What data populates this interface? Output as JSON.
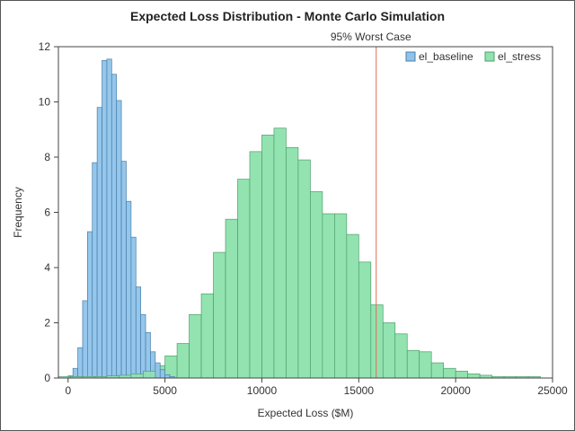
{
  "chart_data": {
    "type": "histogram",
    "title": "Expected Loss Distribution - Monte Carlo Simulation",
    "xlabel": "Expected Loss ($M)",
    "ylabel": "Frequency",
    "xlim": [
      -500,
      25000
    ],
    "ylim": [
      0,
      12
    ],
    "x_ticks": [
      0,
      5000,
      10000,
      15000,
      20000,
      25000
    ],
    "y_ticks": [
      0,
      2,
      4,
      6,
      8,
      10,
      12
    ],
    "grid": false,
    "legend_position": "top-right",
    "reference_line": {
      "x": 15900,
      "label": "95% Worst Case",
      "color": "#e06b5a"
    },
    "series": [
      {
        "name": "el_baseline",
        "color": "#8fc3ea",
        "edge": "#4a7fa8",
        "bin_width": 250,
        "bins": [
          {
            "x0": 0,
            "freq": 0.08
          },
          {
            "x0": 250,
            "freq": 0.35
          },
          {
            "x0": 500,
            "freq": 1.1
          },
          {
            "x0": 750,
            "freq": 2.8
          },
          {
            "x0": 1000,
            "freq": 5.3
          },
          {
            "x0": 1250,
            "freq": 7.8
          },
          {
            "x0": 1500,
            "freq": 9.8
          },
          {
            "x0": 1750,
            "freq": 11.5
          },
          {
            "x0": 2000,
            "freq": 11.55
          },
          {
            "x0": 2250,
            "freq": 11.0
          },
          {
            "x0": 2500,
            "freq": 10.05
          },
          {
            "x0": 2750,
            "freq": 7.85
          },
          {
            "x0": 3000,
            "freq": 6.4
          },
          {
            "x0": 3250,
            "freq": 5.1
          },
          {
            "x0": 3500,
            "freq": 3.3
          },
          {
            "x0": 3750,
            "freq": 2.3
          },
          {
            "x0": 4000,
            "freq": 1.65
          },
          {
            "x0": 4250,
            "freq": 0.95
          },
          {
            "x0": 4500,
            "freq": 0.55
          },
          {
            "x0": 4750,
            "freq": 0.3
          },
          {
            "x0": 5000,
            "freq": 0.12
          },
          {
            "x0": 5250,
            "freq": 0.05
          }
        ]
      },
      {
        "name": "el_stress",
        "color": "#93e3b0",
        "edge": "#4e9e6c",
        "bin_width": 625,
        "bins": [
          {
            "x0": 4375,
            "freq": 0.45
          },
          {
            "x0": 5000,
            "freq": 0.8
          },
          {
            "x0": 5625,
            "freq": 1.25
          },
          {
            "x0": 6250,
            "freq": 2.3
          },
          {
            "x0": 6875,
            "freq": 3.05
          },
          {
            "x0": 7500,
            "freq": 4.55
          },
          {
            "x0": 8125,
            "freq": 5.75
          },
          {
            "x0": 8750,
            "freq": 7.2
          },
          {
            "x0": 9375,
            "freq": 8.2
          },
          {
            "x0": 10000,
            "freq": 8.8
          },
          {
            "x0": 10625,
            "freq": 9.05
          },
          {
            "x0": 11250,
            "freq": 8.35
          },
          {
            "x0": 11875,
            "freq": 7.9
          },
          {
            "x0": 12500,
            "freq": 6.75
          },
          {
            "x0": 13125,
            "freq": 5.95
          },
          {
            "x0": 13750,
            "freq": 5.95
          },
          {
            "x0": 14375,
            "freq": 5.2
          },
          {
            "x0": 15000,
            "freq": 4.2
          },
          {
            "x0": 15625,
            "freq": 2.65
          },
          {
            "x0": 16250,
            "freq": 2.0
          },
          {
            "x0": 16875,
            "freq": 1.6
          },
          {
            "x0": 17500,
            "freq": 1.0
          },
          {
            "x0": 18125,
            "freq": 0.95
          },
          {
            "x0": 18750,
            "freq": 0.55
          },
          {
            "x0": 19375,
            "freq": 0.35
          },
          {
            "x0": 20000,
            "freq": 0.25
          },
          {
            "x0": 20625,
            "freq": 0.15
          },
          {
            "x0": 21250,
            "freq": 0.1
          },
          {
            "x0": 21875,
            "freq": 0.05
          },
          {
            "x0": 22500,
            "freq": 0.05
          },
          {
            "x0": 23125,
            "freq": 0.05
          },
          {
            "x0": 23750,
            "freq": 0.05
          }
        ],
        "low_tail_bins": [
          {
            "x0": -500,
            "freq": 0.05
          },
          {
            "x0": 125,
            "freq": 0.05
          },
          {
            "x0": 750,
            "freq": 0.05
          },
          {
            "x0": 1375,
            "freq": 0.05
          },
          {
            "x0": 2000,
            "freq": 0.08
          },
          {
            "x0": 2625,
            "freq": 0.1
          },
          {
            "x0": 3250,
            "freq": 0.15
          },
          {
            "x0": 3875,
            "freq": 0.25
          }
        ]
      }
    ]
  }
}
